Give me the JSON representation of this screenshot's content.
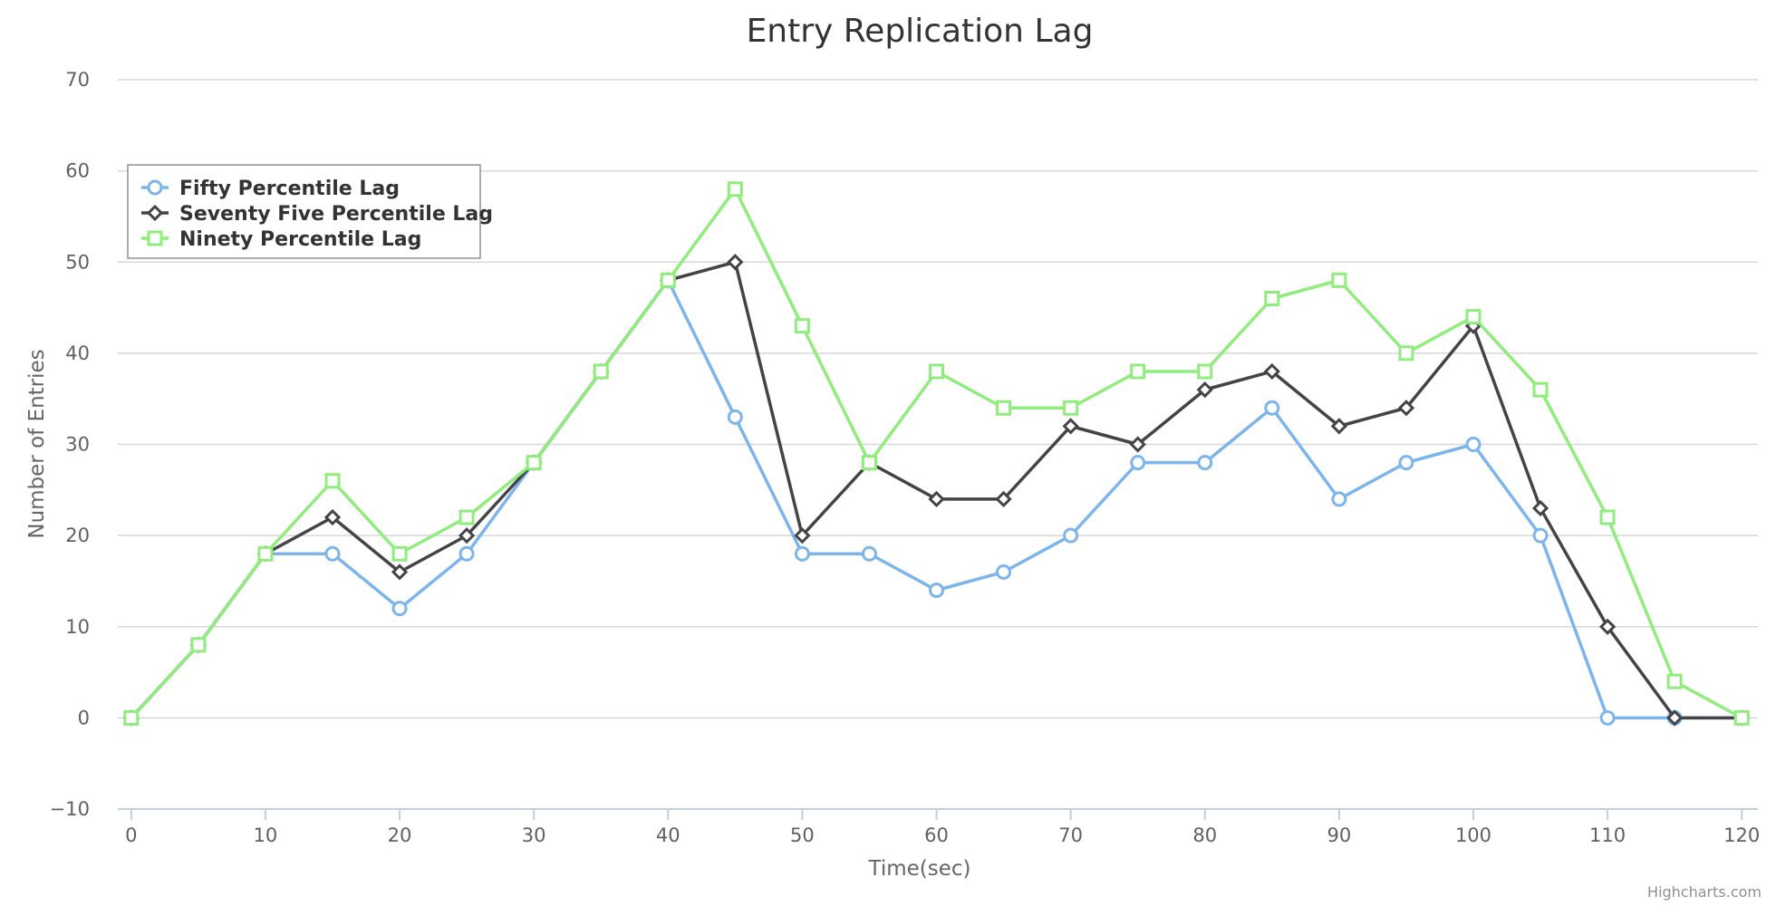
{
  "chart_data": {
    "type": "line",
    "title": "Entry Replication Lag",
    "xlabel": "Time(sec)",
    "ylabel": "Number of Entries",
    "x": [
      0,
      5,
      10,
      15,
      20,
      25,
      30,
      35,
      40,
      45,
      50,
      55,
      60,
      65,
      70,
      75,
      80,
      85,
      90,
      95,
      100,
      105,
      110,
      115,
      120
    ],
    "xticks": [
      0,
      10,
      20,
      30,
      40,
      50,
      60,
      70,
      80,
      90,
      100,
      110,
      120
    ],
    "yticks": [
      -10,
      0,
      10,
      20,
      30,
      40,
      50,
      60,
      70
    ],
    "xlim": [
      -1,
      121.2
    ],
    "ylim": [
      -10,
      70
    ],
    "grid": "horizontal",
    "legend_position": "top-left",
    "series": [
      {
        "name": "Fifty Percentile Lag",
        "color": "#7cb5ec",
        "marker": "circle",
        "values": [
          0,
          8,
          18,
          18,
          12,
          18,
          28,
          38,
          48,
          33,
          18,
          18,
          14,
          16,
          20,
          28,
          28,
          34,
          24,
          28,
          30,
          20,
          0,
          0,
          0
        ]
      },
      {
        "name": "Seventy Five Percentile Lag",
        "color": "#434348",
        "marker": "diamond",
        "values": [
          0,
          8,
          18,
          22,
          16,
          20,
          28,
          38,
          48,
          50,
          20,
          28,
          24,
          24,
          32,
          30,
          36,
          38,
          32,
          34,
          43,
          23,
          10,
          0,
          0
        ]
      },
      {
        "name": "Ninety Percentile Lag",
        "color": "#90ed7d",
        "marker": "square",
        "values": [
          0,
          8,
          18,
          26,
          18,
          22,
          28,
          38,
          48,
          58,
          43,
          28,
          38,
          34,
          34,
          38,
          38,
          46,
          48,
          40,
          44,
          36,
          22,
          4,
          0
        ]
      }
    ],
    "credits": "Highcharts.com"
  }
}
